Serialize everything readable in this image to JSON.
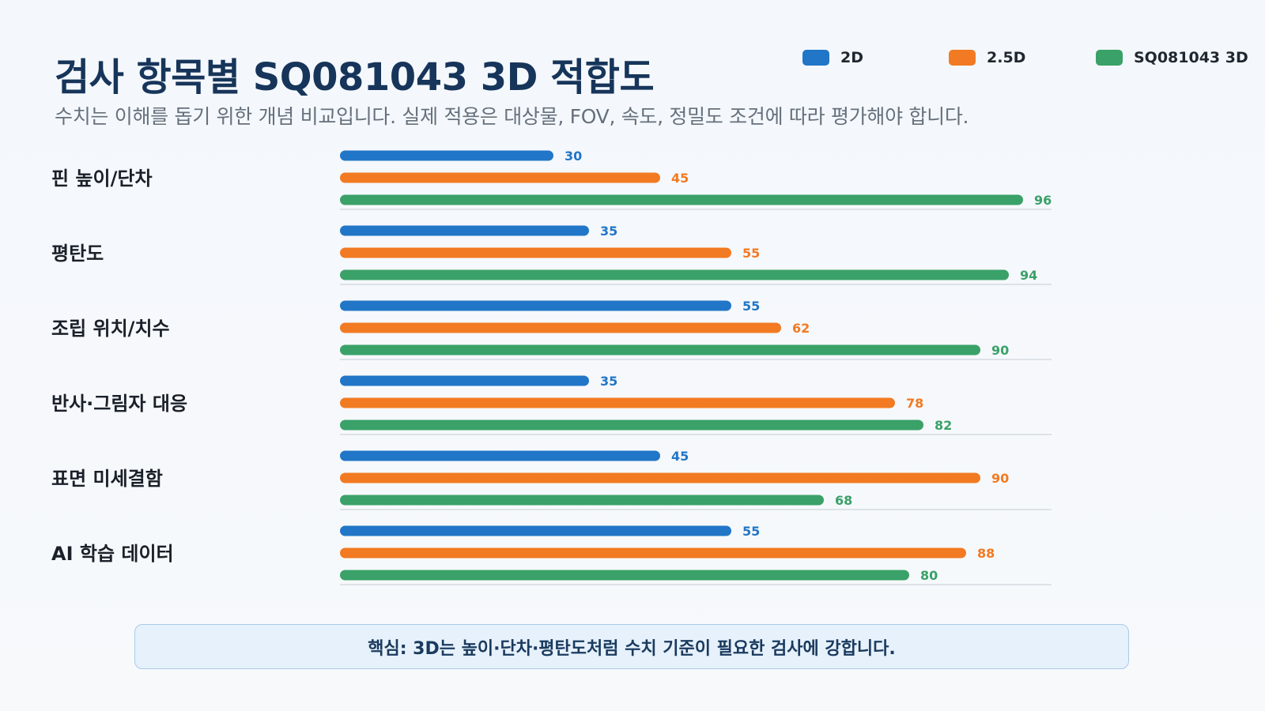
{
  "title": "검사 항목별 SQ081043 3D 적합도",
  "subtitle": "수치는 이해를 돕기 위한 개념 비교입니다. 실제 적용은 대상물, FOV, 속도, 정밀도 조건에 따라 평가해야 합니다.",
  "legend": [
    {
      "label": "2D",
      "color": "#2176c7"
    },
    {
      "label": "2.5D",
      "color": "#f27a22"
    },
    {
      "label": "SQ081043 3D",
      "color": "#3aa168"
    }
  ],
  "chart_data": {
    "type": "bar",
    "orientation": "horizontal",
    "title": "검사 항목별 SQ081043 3D 적합도",
    "categories": [
      "핀 높이/단차",
      "평탄도",
      "조립 위치/치수",
      "반사·그림자 대응",
      "표면 미세결함",
      "AI 학습 데이터"
    ],
    "series": [
      {
        "name": "2D",
        "color": "#2176c7",
        "values": [
          30,
          35,
          55,
          35,
          45,
          55
        ]
      },
      {
        "name": "2.5D",
        "color": "#f27a22",
        "values": [
          45,
          55,
          62,
          78,
          90,
          88
        ]
      },
      {
        "name": "SQ081043 3D",
        "color": "#3aa168",
        "values": [
          96,
          94,
          90,
          82,
          68,
          80
        ]
      }
    ],
    "xlim": [
      0,
      100
    ],
    "grid": false,
    "legend_position": "top-right"
  },
  "callout": {
    "text": "핵심: 3D는 높이·단차·평탄도처럼 수치 기준이 필요한 검사에 강합니다."
  }
}
